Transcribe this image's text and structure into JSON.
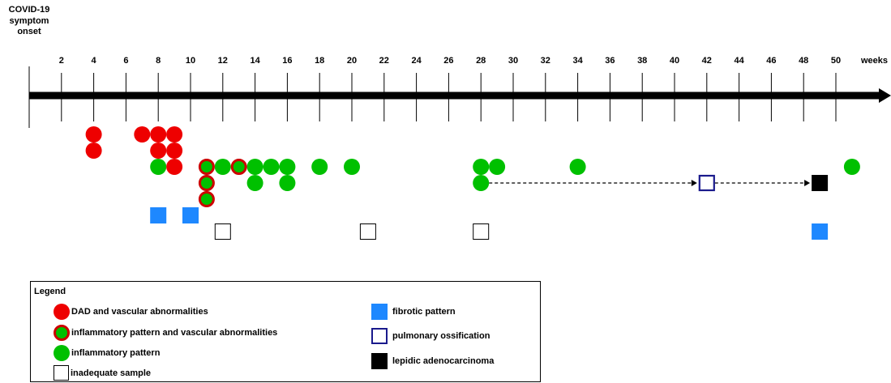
{
  "onset_label": [
    "COVID-19",
    "symptom",
    "onset"
  ],
  "axis": {
    "ticks": [
      "2",
      "4",
      "6",
      "8",
      "10",
      "12",
      "14",
      "16",
      "18",
      "20",
      "22",
      "24",
      "26",
      "28",
      "30",
      "32",
      "34",
      "36",
      "38",
      "40",
      "42",
      "44",
      "46",
      "48",
      "50"
    ],
    "unit": "weeks"
  },
  "colors": {
    "dad": "#ee0000",
    "inflammatory": "#00c000",
    "vascular_ring": "#cc0000",
    "fibrotic": "#1e88ff",
    "ossification": "#1a1a8c",
    "adenocarcinoma": "#000000",
    "inadequate": "#ffffff"
  },
  "markers": {
    "dad": [
      [
        4,
        1
      ],
      [
        4,
        2
      ],
      [
        7,
        1
      ],
      [
        8,
        1
      ],
      [
        8,
        2
      ],
      [
        9,
        1
      ],
      [
        9,
        2
      ],
      [
        9,
        3
      ]
    ],
    "inflammatory": [
      [
        8,
        3
      ],
      [
        12,
        3
      ],
      [
        14,
        3
      ],
      [
        14,
        4
      ],
      [
        15,
        3
      ],
      [
        16,
        3
      ],
      [
        16,
        4
      ],
      [
        18,
        3
      ],
      [
        20,
        3
      ],
      [
        28,
        3
      ],
      [
        28,
        4
      ],
      [
        29,
        3
      ],
      [
        34,
        3
      ],
      [
        51,
        3
      ]
    ],
    "inflammatory_vascular": [
      [
        11,
        3
      ],
      [
        11,
        4
      ],
      [
        11,
        5
      ],
      [
        13,
        3
      ]
    ],
    "fibrotic": [
      [
        8,
        6
      ],
      [
        10,
        6
      ],
      [
        49,
        7
      ]
    ],
    "inadequate": [
      [
        12,
        7
      ],
      [
        21,
        7
      ],
      [
        28,
        7
      ]
    ],
    "ossification": [
      [
        42,
        4
      ]
    ],
    "adenocarcinoma": [
      [
        49,
        4
      ]
    ]
  },
  "follow_up_arrows": [
    [
      28,
      42,
      4
    ],
    [
      42,
      49,
      4
    ]
  ],
  "legend": {
    "title": "Legend",
    "items": {
      "dad": "DAD and vascular abnormalities",
      "inflammatory_vascular": "inflammatory pattern and vascular abnormalities",
      "inflammatory": "inflammatory pattern",
      "inadequate": "inadequate sample",
      "fibrotic": "fibrotic pattern",
      "ossification": "pulmonary ossification",
      "adenocarcinoma": "lepidic adenocarcinoma"
    }
  }
}
